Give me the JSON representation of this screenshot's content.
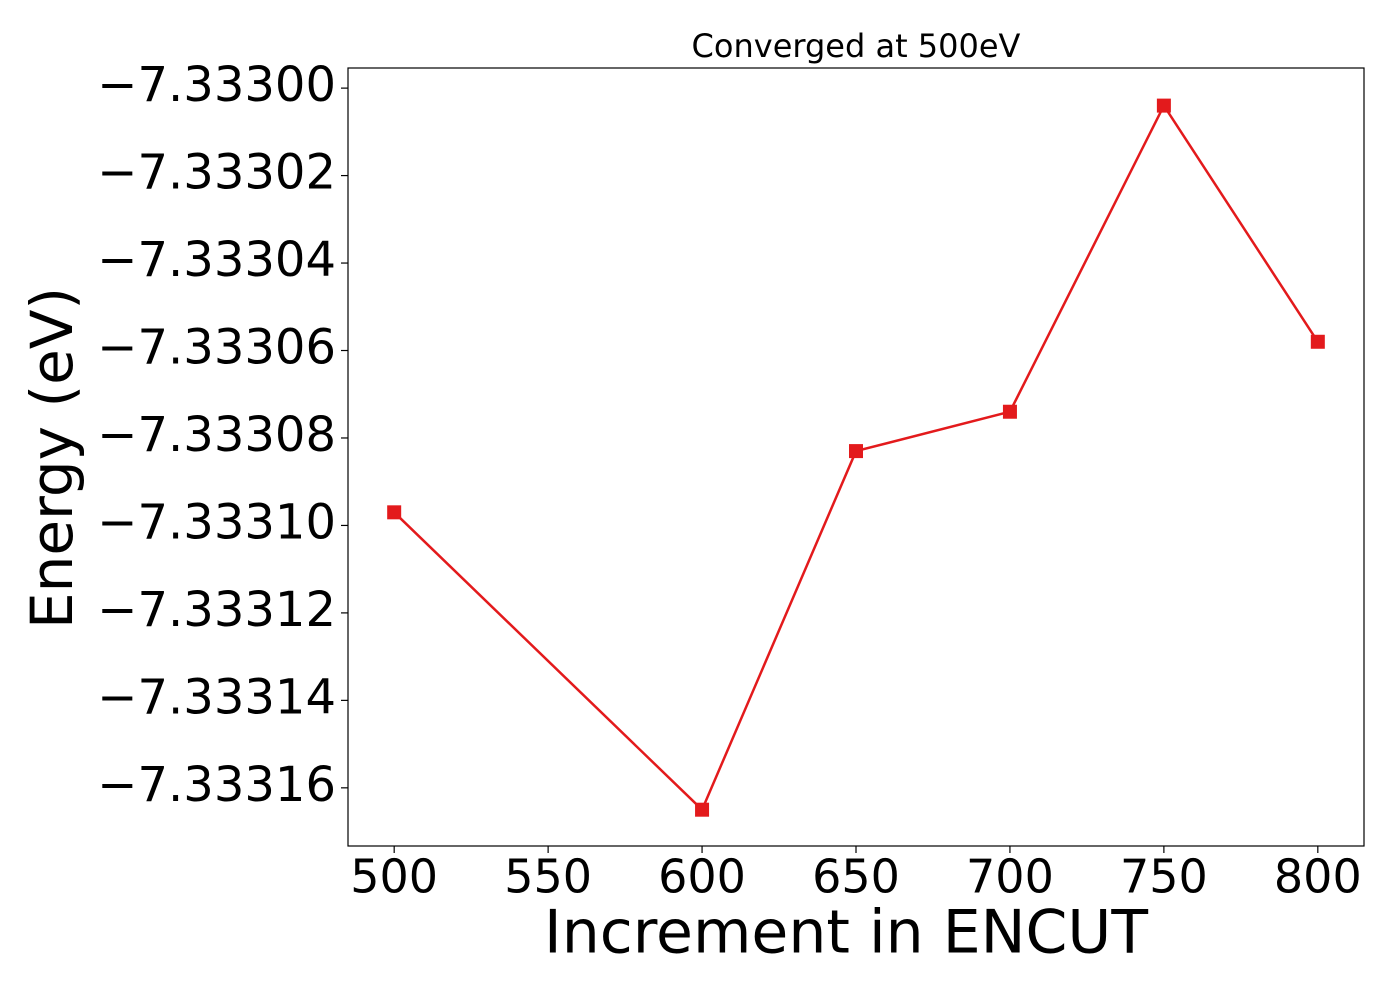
{
  "chart_data": {
    "type": "line",
    "title": "Converged at 500eV",
    "xlabel": "Increment in ENCUT",
    "ylabel": "Energy (eV)",
    "x": [
      500,
      600,
      650,
      700,
      750,
      800
    ],
    "series": [
      {
        "name": "Energy",
        "color": "#e31a1c",
        "marker": "square",
        "values": [
          -7.333097,
          -7.333165,
          -7.333083,
          -7.333074,
          -7.333004,
          -7.333058
        ]
      }
    ],
    "xlim": [
      485,
      815
    ],
    "xticks": [
      500,
      550,
      600,
      650,
      700,
      750,
      800
    ],
    "ylim": [
      -7.3331733,
      -7.3329954
    ],
    "yticks": [
      {
        "value": -7.333,
        "label": "−7.33300"
      },
      {
        "value": -7.33302,
        "label": "−7.33302"
      },
      {
        "value": -7.33304,
        "label": "−7.33304"
      },
      {
        "value": -7.33306,
        "label": "−7.33306"
      },
      {
        "value": -7.33308,
        "label": "−7.33308"
      },
      {
        "value": -7.3331,
        "label": "−7.33310"
      },
      {
        "value": -7.33312,
        "label": "−7.33312"
      },
      {
        "value": -7.33314,
        "label": "−7.33314"
      },
      {
        "value": -7.33316,
        "label": "−7.33316"
      }
    ],
    "grid": false
  }
}
